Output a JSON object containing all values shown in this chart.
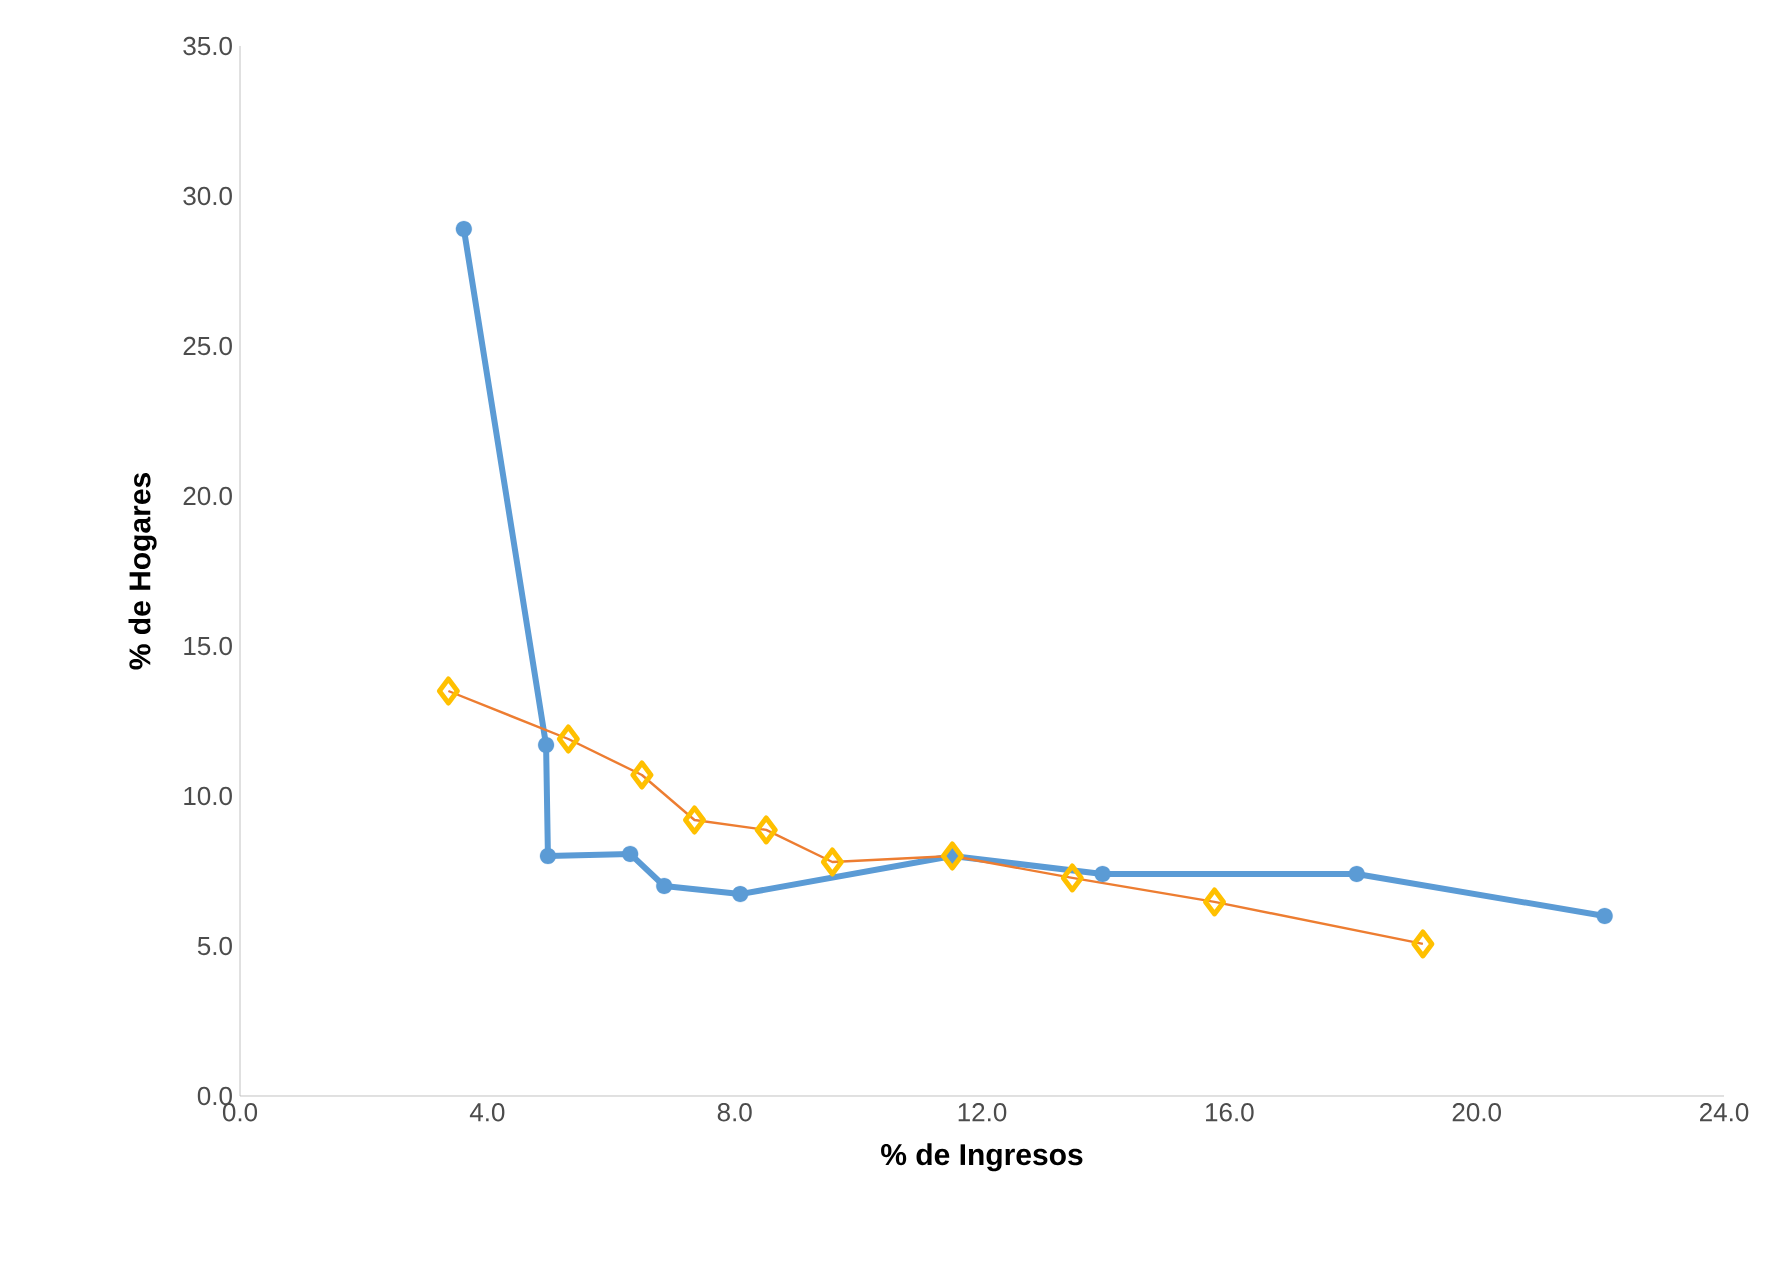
{
  "chart_data": {
    "type": "line",
    "xlabel": "% de Ingresos",
    "ylabel": "% de Hogares",
    "xlim": [
      0,
      24
    ],
    "ylim": [
      0,
      35
    ],
    "xticks": [
      {
        "value": 0,
        "label": "0.0"
      },
      {
        "value": 4,
        "label": "4.0"
      },
      {
        "value": 8,
        "label": "8.0"
      },
      {
        "value": 12,
        "label": "12.0"
      },
      {
        "value": 16,
        "label": "16.0"
      },
      {
        "value": 20,
        "label": "20.0"
      },
      {
        "value": 24,
        "label": "24.0"
      }
    ],
    "yticks": [
      {
        "value": 0,
        "label": "0.0"
      },
      {
        "value": 5,
        "label": "5.0"
      },
      {
        "value": 10,
        "label": "10.0"
      },
      {
        "value": 15,
        "label": "15.0"
      },
      {
        "value": 20,
        "label": "20.0"
      },
      {
        "value": 25,
        "label": "25.0"
      },
      {
        "value": 30,
        "label": "30.0"
      },
      {
        "value": 35,
        "label": "35.0"
      }
    ],
    "series": [
      {
        "color": "#5b9bd5",
        "marker": "circle",
        "x": [
          3.62,
          4.95,
          4.98,
          6.31,
          6.86,
          8.09,
          11.52,
          13.95,
          18.06,
          22.07
        ],
        "values": [
          28.9,
          11.7,
          8.0,
          8.07,
          7.0,
          6.73,
          8.0,
          7.4,
          7.4,
          6.0
        ]
      },
      {
        "color": "#ed7d31",
        "colors": [
          "#ffc000",
          "#ffc000",
          "#ffc000",
          "#ffc000",
          "#ffc000",
          "#ffc000",
          "#ffc000",
          "#ffc000",
          "#ffc000",
          "#ffc000"
        ],
        "marker": "diamond",
        "x": [
          3.37,
          5.31,
          6.5,
          7.35,
          8.51,
          9.58,
          11.52,
          13.46,
          15.76,
          19.13
        ],
        "values": [
          13.5,
          11.9,
          10.7,
          9.2,
          8.87,
          7.8,
          8.0,
          7.27,
          6.47,
          5.07
        ]
      }
    ]
  }
}
